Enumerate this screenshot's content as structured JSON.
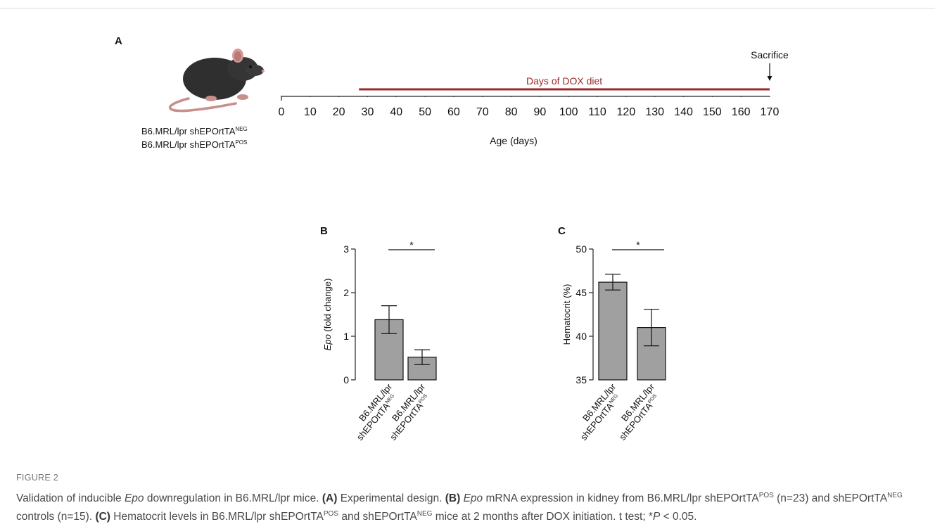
{
  "chart_data": [
    {
      "type": "timeline",
      "panel": "A",
      "xlim": [
        0,
        170
      ],
      "xticks": [
        0,
        10,
        20,
        30,
        40,
        50,
        60,
        70,
        80,
        90,
        100,
        110,
        120,
        130,
        140,
        150,
        160,
        170
      ],
      "xlabel": "Age (days)",
      "dox_label": "Days of DOX diet",
      "dox_start": 27,
      "dox_end": 170,
      "dox_color": "#9b2a2a",
      "event_label": "Sacrifice",
      "event_at": 170,
      "groups": [
        [
          "B6.MRL/lpr shEPOrtTA",
          "NEG"
        ],
        [
          "B6.MRL/lpr shEPOrtTA",
          "POS"
        ]
      ]
    },
    {
      "type": "bar",
      "panel": "B",
      "ylabel": [
        "Epo",
        " (fold change)"
      ],
      "categories": [
        [
          "B6.MRL/lpr",
          "shEPOrtTA",
          "NEG"
        ],
        [
          "B6.MRL/lpr",
          "shEPOrtTA",
          "POS"
        ]
      ],
      "values": [
        1.38,
        0.52
      ],
      "errors": [
        0.32,
        0.17
      ],
      "color": "#a0a0a0",
      "ylim": [
        0,
        3
      ],
      "yticks": [
        0,
        1,
        2,
        3
      ],
      "significance": "*"
    },
    {
      "type": "bar",
      "panel": "C",
      "ylabel": [
        "Hematocrit (%)"
      ],
      "categories": [
        [
          "B6.MRL/lpr",
          "shEPOrtTA",
          "NEG"
        ],
        [
          "B6.MRL/lpr",
          "shEPOrtTA",
          "POS"
        ]
      ],
      "values": [
        46.2,
        41.0
      ],
      "errors": [
        0.9,
        2.1
      ],
      "color": "#a0a0a0",
      "ylim": [
        35,
        50
      ],
      "yticks": [
        35,
        40,
        45,
        50
      ],
      "significance": "*"
    }
  ],
  "caption": {
    "label": "FIGURE 2",
    "parts": [
      "Validation of inducible ",
      "Epo",
      " downregulation in B6.MRL/lpr mice. ",
      "(A)",
      " Experimental design. ",
      "(B) ",
      "Epo",
      " mRNA expression in kidney from B6.MRL/lpr shEPOrtTA",
      "POS",
      " (n=23) and shEPOrtTA",
      "NEG",
      " controls (n=15). ",
      "(C)",
      " Hematocrit levels in B6.MRL/lpr shEPOrtTA",
      "POS",
      " and shEPOrtTA",
      "NEG",
      " mice at 2 months after DOX initiation. t test; *",
      "P",
      " < 0.05."
    ]
  }
}
